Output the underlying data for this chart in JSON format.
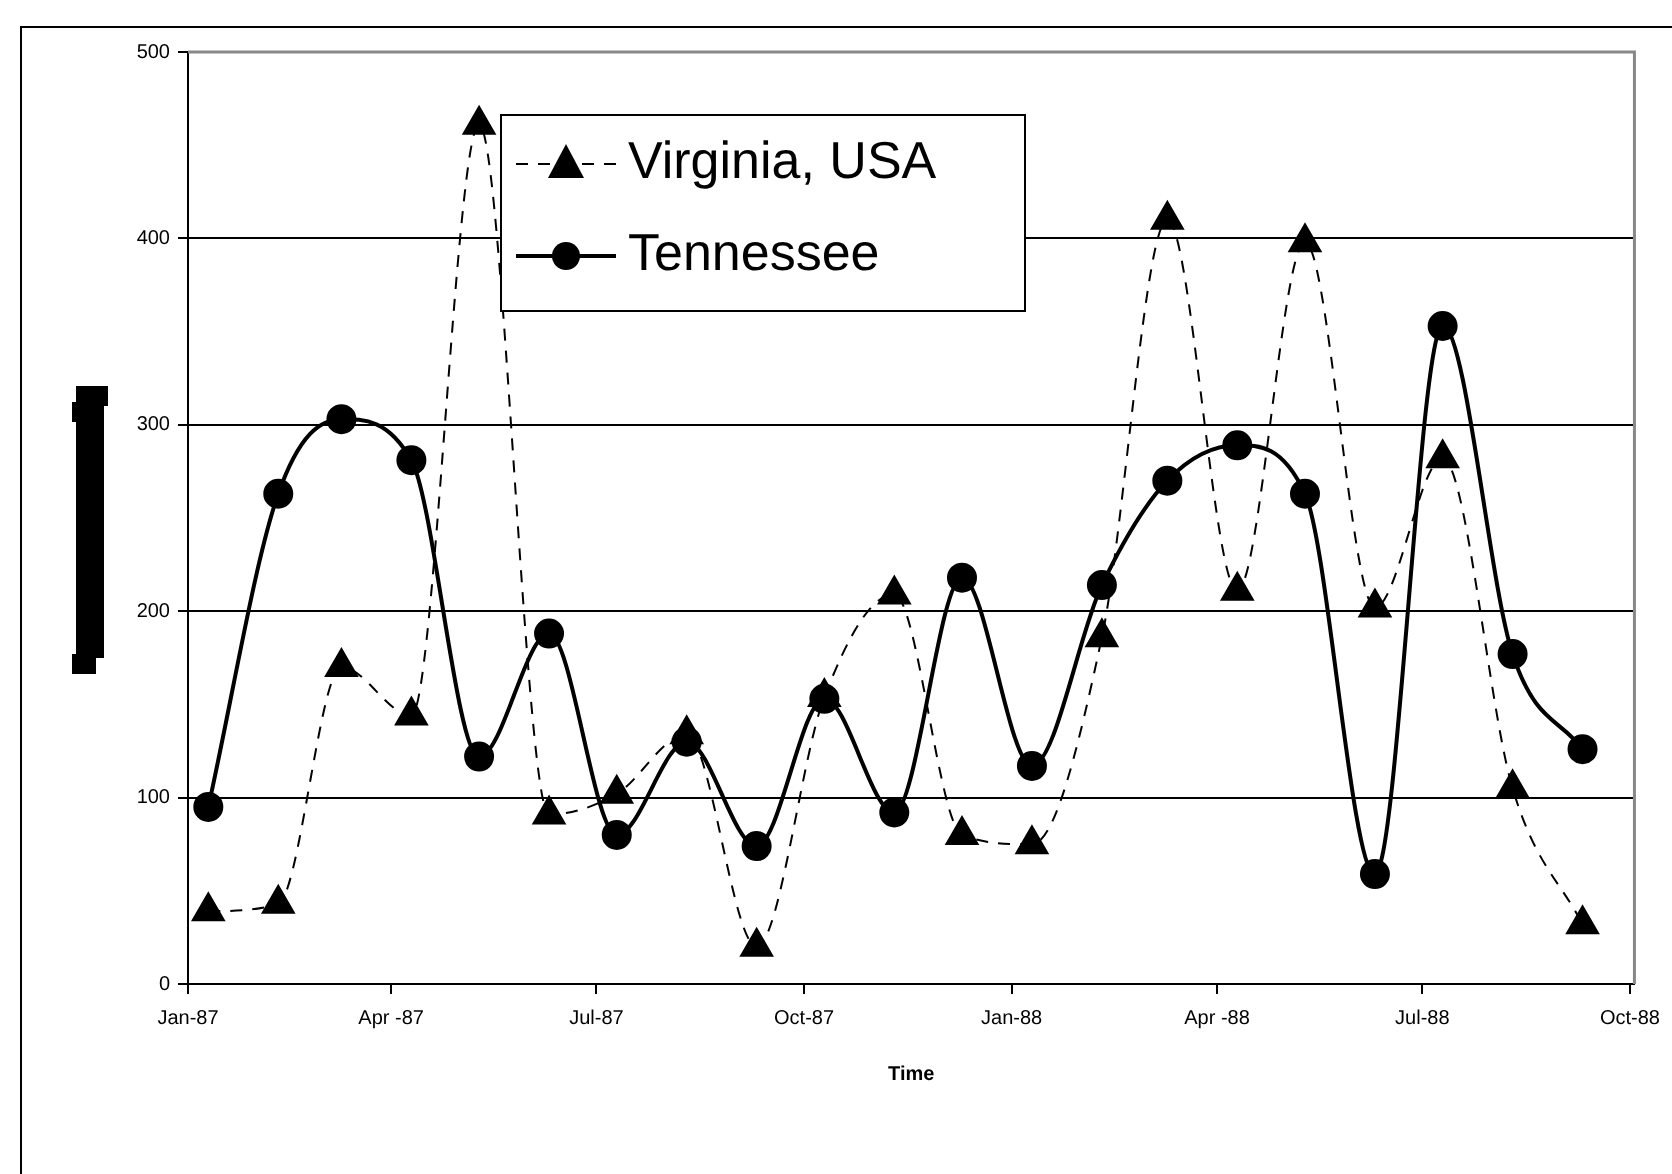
{
  "chart_data": {
    "type": "line",
    "xlabel": "Time",
    "x": [
      "1987-01-10",
      "1987-02-10",
      "1987-03-10",
      "1987-04-10",
      "1987-05-10",
      "1987-06-10",
      "1987-07-10",
      "1987-08-10",
      "1987-09-10",
      "1987-10-10",
      "1987-11-10",
      "1987-12-10",
      "1988-01-10",
      "1988-02-10",
      "1988-03-10",
      "1988-04-10",
      "1988-05-10",
      "1988-06-10",
      "1988-07-10",
      "1988-08-10",
      "1988-09-10"
    ],
    "series": [
      {
        "name": "Virginia, USA",
        "color": "#000000",
        "marker": "triangle",
        "line_style": "dashed",
        "values": [
          39,
          43,
          170,
          144,
          461,
          91,
          102,
          134,
          20,
          154,
          209,
          80,
          75,
          186,
          410,
          211,
          398,
          202,
          282,
          105,
          32
        ]
      },
      {
        "name": "Tennessee",
        "color": "#000000",
        "marker": "circle",
        "line_style": "solid",
        "values": [
          95,
          263,
          303,
          281,
          122,
          188,
          80,
          130,
          74,
          153,
          92,
          218,
          117,
          214,
          270,
          289,
          263,
          59,
          353,
          177,
          126
        ]
      }
    ],
    "xlim": [
      "1987-01-01",
      "1988-10-03"
    ],
    "xticks": [
      {
        "value": "1987-01-01",
        "label": "Jan-87"
      },
      {
        "value": "1987-04-01",
        "label": "Apr -87"
      },
      {
        "value": "1987-07-01",
        "label": "Jul-87"
      },
      {
        "value": "1987-10-01",
        "label": "Oct-87"
      },
      {
        "value": "1988-01-01",
        "label": "Jan-88"
      },
      {
        "value": "1988-04-01",
        "label": "Apr -88"
      },
      {
        "value": "1988-07-01",
        "label": "Jul-88"
      },
      {
        "value": "1988-10-01",
        "label": "Oct-88"
      }
    ],
    "ylim": [
      0,
      500
    ],
    "yticks": [
      0,
      100,
      200,
      300,
      400,
      500
    ],
    "grid": "y",
    "legend": "top"
  }
}
